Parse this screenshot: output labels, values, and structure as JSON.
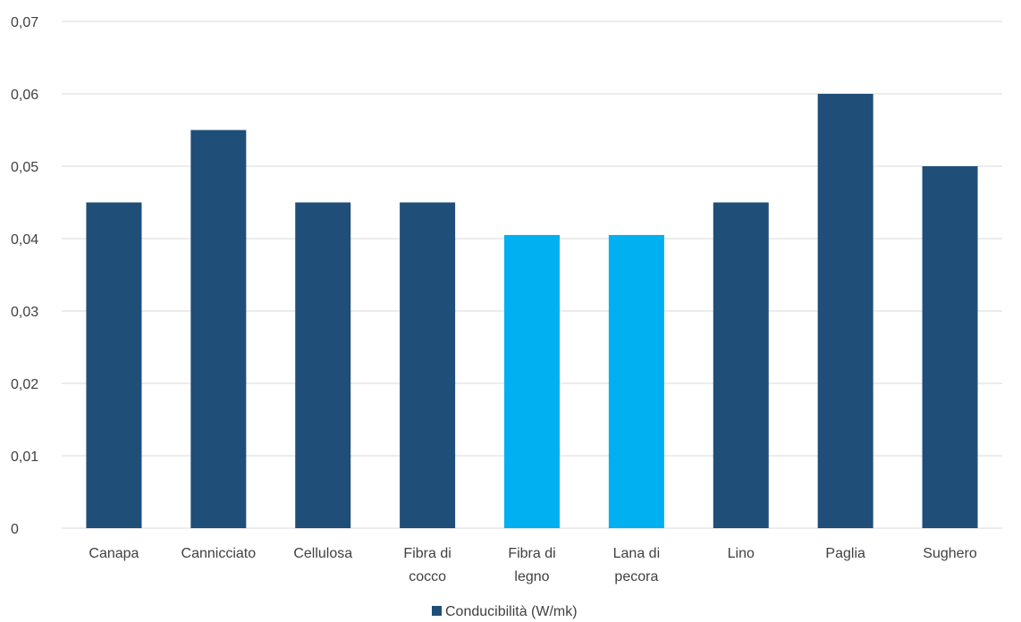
{
  "chart_data": {
    "type": "bar",
    "categories": [
      [
        "Canapa"
      ],
      [
        "Cannicciato"
      ],
      [
        "Cellulosa"
      ],
      [
        "Fibra di",
        "cocco"
      ],
      [
        "Fibra di",
        "legno"
      ],
      [
        "Lana di",
        "pecora"
      ],
      [
        "Lino"
      ],
      [
        "Paglia"
      ],
      [
        "Sughero"
      ]
    ],
    "series": [
      {
        "name": "Conducibilità (W/mk)",
        "values": [
          0.045,
          0.055,
          0.045,
          0.045,
          0.0405,
          0.0405,
          0.045,
          0.06,
          0.05
        ],
        "bar_colors": [
          "#1f4e79",
          "#1f4e79",
          "#1f4e79",
          "#1f4e79",
          "#00b0f0",
          "#00b0f0",
          "#1f4e79",
          "#1f4e79",
          "#1f4e79"
        ]
      }
    ],
    "title": "",
    "xlabel": "",
    "ylabel": "",
    "ylim": [
      0,
      0.07
    ],
    "yticks": [
      "0",
      "0,01",
      "0,02",
      "0,03",
      "0,04",
      "0,05",
      "0,06",
      "0,07"
    ],
    "grid": true,
    "legend_position": "bottom",
    "colors": {
      "primary": "#1f4e79",
      "highlight": "#00b0f0",
      "grid": "#d9d9d9",
      "text": "#404040"
    }
  }
}
